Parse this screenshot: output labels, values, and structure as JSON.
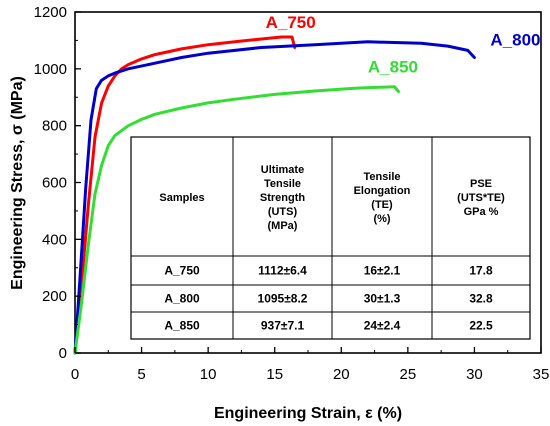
{
  "chart_data": {
    "type": "line",
    "title": "",
    "xlabel": "Engineering Strain, ε (%)",
    "ylabel": "Engineering Stress, σ (MPa)",
    "xlim": [
      0,
      35
    ],
    "ylim": [
      0,
      1200
    ],
    "xticks": [
      "0",
      "5",
      "10",
      "15",
      "20",
      "25",
      "30",
      "35"
    ],
    "yticks": [
      "0",
      "200",
      "400",
      "600",
      "800",
      "1000",
      "1200"
    ],
    "grid": false,
    "series": [
      {
        "name": "A_750",
        "color": "#ff0000",
        "x": [
          0,
          0.5,
          1.0,
          1.5,
          2.0,
          2.5,
          3.0,
          3.5,
          4.0,
          5.0,
          6.0,
          8.0,
          10.0,
          12.0,
          14.0,
          15.5,
          16.3,
          16.5
        ],
        "y": [
          0,
          250,
          520,
          760,
          880,
          940,
          975,
          1000,
          1015,
          1035,
          1050,
          1070,
          1085,
          1095,
          1105,
          1112,
          1112,
          1075
        ]
      },
      {
        "name": "A_800",
        "color": "#0000cc",
        "x": [
          0,
          0.4,
          0.8,
          1.2,
          1.6,
          2.0,
          2.5,
          3.0,
          4.0,
          6.0,
          8.0,
          10.0,
          14.0,
          18.0,
          22.0,
          26.0,
          28.0,
          29.5,
          30.0
        ],
        "y": [
          0,
          280,
          580,
          820,
          930,
          960,
          975,
          985,
          1000,
          1020,
          1040,
          1055,
          1075,
          1085,
          1095,
          1090,
          1080,
          1065,
          1040
        ]
      },
      {
        "name": "A_850",
        "color": "#33dd33",
        "x": [
          0,
          0.5,
          1.0,
          1.5,
          2.0,
          2.5,
          3.0,
          4.0,
          5.0,
          6.0,
          8.0,
          10.0,
          12.0,
          15.0,
          18.0,
          21.0,
          24.0,
          24.3
        ],
        "y": [
          0,
          180,
          380,
          560,
          660,
          730,
          765,
          800,
          822,
          840,
          862,
          880,
          893,
          910,
          922,
          932,
          937,
          920
        ]
      }
    ],
    "table": {
      "headers": [
        [
          "Samples"
        ],
        [
          "Ultimate",
          "Tensile",
          "Strength",
          "(UTS)",
          "(MPa)"
        ],
        [
          "Tensile",
          "Elongation",
          "(TE)",
          "(%)"
        ],
        [
          "PSE",
          "(UTS*TE)",
          "GPa %"
        ]
      ],
      "rows": [
        [
          "A_750",
          "1112±6.4",
          "16±2.1",
          "17.8"
        ],
        [
          "A_800",
          "1095±8.2",
          "30±1.3",
          "32.8"
        ],
        [
          "A_850",
          "937±7.1",
          "24±2.4",
          "22.5"
        ]
      ]
    }
  }
}
